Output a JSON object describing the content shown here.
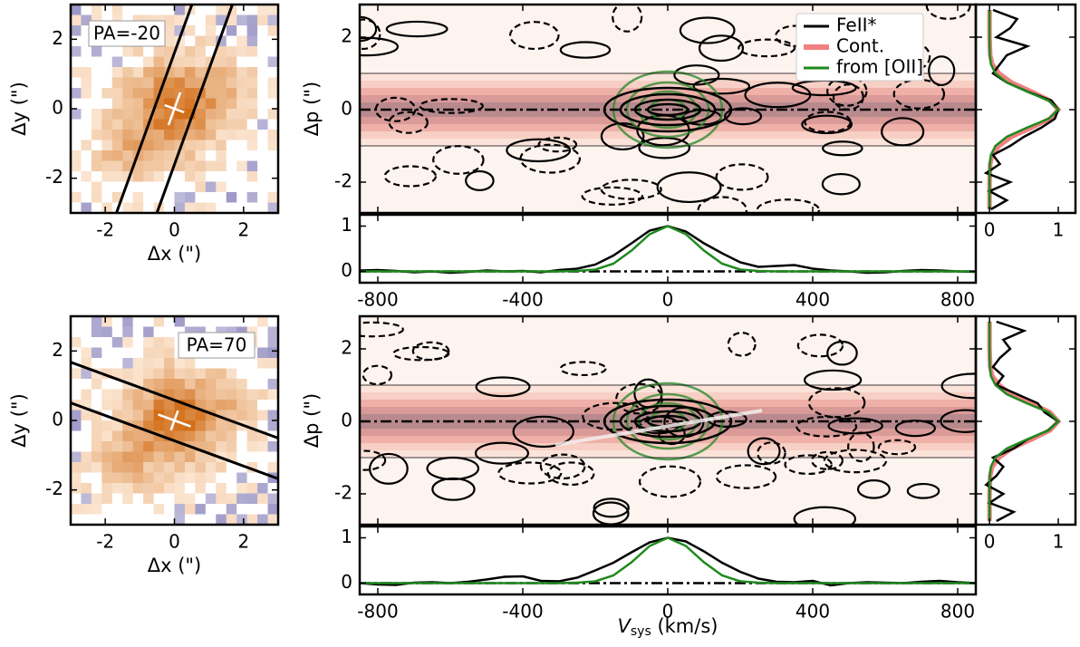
{
  "chart_data": [
    {
      "type": "image",
      "xlabel": "Δx (\")",
      "ylabel": "Δy (\")",
      "xlim": [
        -3,
        3
      ],
      "ylim": [
        -3,
        3
      ],
      "xticks": [
        -2,
        0,
        2
      ],
      "yticks": [
        -2,
        0,
        2
      ],
      "annotation": "PA=-20",
      "position_angle": -20
    },
    {
      "type": "contour",
      "ylabel": "Δp (\")",
      "xlim": [
        -850,
        850
      ],
      "ylim": [
        -2.85,
        2.9
      ],
      "xticks": [
        -800,
        -400,
        0,
        400,
        800
      ],
      "yticks": [
        -2,
        0,
        2
      ],
      "legend": "upper right"
    },
    {
      "type": "line",
      "xlim": [
        -850,
        850
      ],
      "ylim": [
        -0.25,
        1.25
      ],
      "xticks": [
        -800,
        -400,
        0,
        400,
        800
      ],
      "yticks": [
        0,
        1
      ],
      "x": [
        -850,
        -800,
        -750,
        -700,
        -650,
        -600,
        -550,
        -500,
        -450,
        -400,
        -350,
        -300,
        -250,
        -200,
        -150,
        -100,
        -50,
        0,
        50,
        100,
        150,
        200,
        250,
        300,
        350,
        400,
        450,
        500,
        550,
        600,
        650,
        700,
        750,
        800,
        850
      ],
      "series": [
        {
          "color": "#000000",
          "values": [
            0.02,
            0.03,
            0.01,
            -0.02,
            0.0,
            -0.03,
            -0.01,
            0.02,
            0.0,
            0.01,
            -0.02,
            0.03,
            0.06,
            0.15,
            0.35,
            0.62,
            0.9,
            1.0,
            0.88,
            0.62,
            0.4,
            0.2,
            0.1,
            0.12,
            0.14,
            0.06,
            0.02,
            0.0,
            -0.03,
            -0.02,
            0.01,
            0.03,
            0.02,
            0.0,
            -0.01
          ]
        },
        {
          "color": "#1f8a1f",
          "values": [
            0,
            0,
            0,
            0,
            0,
            0,
            0,
            0,
            0,
            0,
            0,
            0,
            0.01,
            0.04,
            0.17,
            0.46,
            0.82,
            1,
            0.82,
            0.46,
            0.17,
            0.04,
            0.01,
            0,
            0,
            0,
            0,
            0,
            0,
            0,
            0,
            0,
            0,
            0,
            0
          ]
        }
      ]
    },
    {
      "type": "profile",
      "xlim": [
        -0.2,
        1.25
      ],
      "ylim": [
        -2.85,
        2.9
      ],
      "xticks": [
        0,
        1
      ],
      "yticks": [
        -2,
        0,
        2
      ],
      "y": [
        -2.75,
        -2.5,
        -2.25,
        -2,
        -1.75,
        -1.5,
        -1.25,
        -1,
        -0.75,
        -0.5,
        -0.25,
        0,
        0.25,
        0.5,
        0.75,
        1,
        1.25,
        1.5,
        1.75,
        2,
        2.25,
        2.5,
        2.75
      ],
      "series": [
        {
          "name": "Cont.",
          "color": "#f08080",
          "values": [
            0,
            0,
            0,
            0,
            0.005,
            0.01,
            0.04,
            0.14,
            0.32,
            0.61,
            0.88,
            1,
            0.88,
            0.61,
            0.32,
            0.14,
            0.04,
            0.01,
            0.005,
            0,
            0,
            0,
            0
          ]
        },
        {
          "name": "FeII*",
          "color": "#000000",
          "values": [
            0.02,
            0.25,
            0.0,
            0.3,
            -0.05,
            0.15,
            0.05,
            0.3,
            0.5,
            0.75,
            0.95,
            1.0,
            0.9,
            0.55,
            0.25,
            0.05,
            0.15,
            0.25,
            0.55,
            0.1,
            0.3,
            0.4,
            0.05
          ]
        },
        {
          "name": "from [OII]",
          "color": "#1f8a1f",
          "values": [
            0,
            0,
            0,
            0,
            0,
            0.004,
            0.02,
            0.085,
            0.25,
            0.54,
            0.86,
            1,
            0.86,
            0.54,
            0.25,
            0.085,
            0.02,
            0.004,
            0,
            0,
            0,
            0,
            0
          ]
        }
      ]
    },
    {
      "type": "image",
      "xlabel": "Δx (\")",
      "ylabel": "Δy (\")",
      "xlim": [
        -3,
        3
      ],
      "ylim": [
        -3,
        3
      ],
      "xticks": [
        -2,
        0,
        2
      ],
      "yticks": [
        -2,
        0,
        2
      ],
      "annotation": "PA=70",
      "position_angle": 70
    },
    {
      "type": "contour",
      "ylabel": "Δp (\")",
      "xlim": [
        -850,
        850
      ],
      "ylim": [
        -2.85,
        2.9
      ],
      "xticks": [
        -800,
        -400,
        0,
        400,
        800
      ],
      "yticks": [
        -2,
        0,
        2
      ]
    },
    {
      "type": "line",
      "xlabel": {
        "symbol": "V",
        "subscript": "sys",
        "unit": " (km/s)"
      },
      "xlim": [
        -850,
        850
      ],
      "ylim": [
        -0.25,
        1.25
      ],
      "xticks": [
        -800,
        -400,
        0,
        400,
        800
      ],
      "yticks": [
        0,
        1
      ],
      "x": [
        -850,
        -800,
        -750,
        -700,
        -650,
        -600,
        -550,
        -500,
        -450,
        -400,
        -350,
        -300,
        -250,
        -200,
        -150,
        -100,
        -50,
        0,
        50,
        100,
        150,
        200,
        250,
        300,
        350,
        400,
        450,
        500,
        550,
        600,
        650,
        700,
        750,
        800,
        850
      ],
      "series": [
        {
          "color": "#000000",
          "values": [
            0.0,
            -0.03,
            -0.04,
            0.01,
            0.02,
            0.0,
            0.03,
            0.08,
            0.14,
            0.15,
            0.05,
            0.04,
            0.12,
            0.28,
            0.45,
            0.68,
            0.9,
            1.0,
            0.92,
            0.7,
            0.45,
            0.25,
            0.1,
            0.03,
            0.02,
            0.05,
            -0.05,
            0.0,
            0.02,
            0.01,
            0.0,
            0.03,
            0.05,
            0.02,
            0.0
          ]
        },
        {
          "color": "#1f8a1f",
          "values": [
            0,
            0,
            0,
            0,
            0,
            0,
            0,
            0,
            0,
            0,
            0,
            0,
            0.01,
            0.04,
            0.17,
            0.46,
            0.82,
            1,
            0.82,
            0.46,
            0.17,
            0.04,
            0.01,
            0,
            0,
            0,
            0,
            0,
            0,
            0,
            0,
            0,
            0,
            0,
            0
          ]
        }
      ]
    },
    {
      "type": "profile",
      "xlim": [
        -0.2,
        1.25
      ],
      "ylim": [
        -2.85,
        2.9
      ],
      "xticks": [
        0,
        1
      ],
      "yticks": [
        -2,
        0,
        2
      ],
      "y": [
        -2.75,
        -2.5,
        -2.25,
        -2,
        -1.75,
        -1.5,
        -1.25,
        -1,
        -0.75,
        -0.5,
        -0.25,
        0,
        0.25,
        0.5,
        0.75,
        1,
        1.25,
        1.5,
        1.75,
        2,
        2.25,
        2.5,
        2.75
      ],
      "series": [
        {
          "color": "#f08080",
          "values": [
            0,
            0,
            0,
            0,
            0.005,
            0.01,
            0.04,
            0.14,
            0.32,
            0.61,
            0.88,
            1,
            0.88,
            0.61,
            0.32,
            0.14,
            0.04,
            0.01,
            0.005,
            0,
            0,
            0,
            0
          ]
        },
        {
          "color": "#000000",
          "values": [
            0.1,
            0.35,
            0.0,
            0.2,
            -0.05,
            0.1,
            0.2,
            0.05,
            0.35,
            0.55,
            0.85,
            1.0,
            0.8,
            0.7,
            0.4,
            0.1,
            0.2,
            0.05,
            0.15,
            0.3,
            0.2,
            0.5,
            0.1
          ]
        },
        {
          "color": "#1f8a1f",
          "values": [
            0,
            0,
            0,
            0,
            0,
            0.004,
            0.02,
            0.085,
            0.25,
            0.54,
            0.86,
            1,
            0.86,
            0.54,
            0.25,
            0.085,
            0.02,
            0.004,
            0,
            0,
            0,
            0,
            0
          ]
        }
      ]
    }
  ]
}
